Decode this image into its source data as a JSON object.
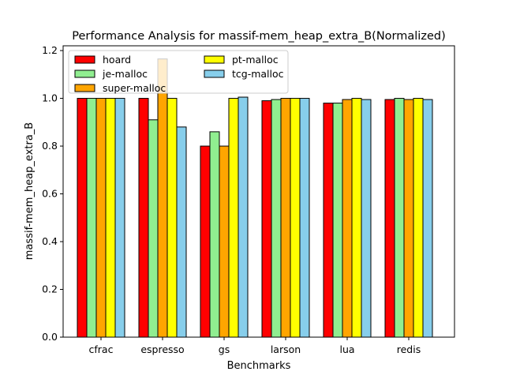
{
  "chart_data": {
    "type": "bar",
    "title": "Performance Analysis for massif-mem_heap_extra_B(Normalized)",
    "xlabel": "Benchmarks",
    "ylabel": "massif-mem_heap_extra_B",
    "ylim": [
      0,
      1.22
    ],
    "yticks": [
      "0.0",
      "0.2",
      "0.4",
      "0.6",
      "0.8",
      "1.0",
      "1.2"
    ],
    "categories": [
      "cfrac",
      "espresso",
      "gs",
      "larson",
      "lua",
      "redis"
    ],
    "legend_position": "top-left",
    "grid": false,
    "series": [
      {
        "name": "hoard",
        "color": "#ff0000",
        "values": [
          1.0,
          1.0,
          0.8,
          0.99,
          0.98,
          0.995
        ]
      },
      {
        "name": "je-malloc",
        "color": "#90ee90",
        "values": [
          1.0,
          0.91,
          0.86,
          0.995,
          0.98,
          1.0
        ]
      },
      {
        "name": "super-malloc",
        "color": "#ffa500",
        "values": [
          1.0,
          1.165,
          0.8,
          1.0,
          0.995,
          0.995
        ]
      },
      {
        "name": "pt-malloc",
        "color": "#ffff00",
        "values": [
          1.0,
          1.0,
          1.0,
          1.0,
          1.0,
          1.0
        ]
      },
      {
        "name": "tcg-malloc",
        "color": "#87ceeb",
        "values": [
          1.0,
          0.88,
          1.005,
          1.0,
          0.995,
          0.995
        ]
      }
    ]
  }
}
